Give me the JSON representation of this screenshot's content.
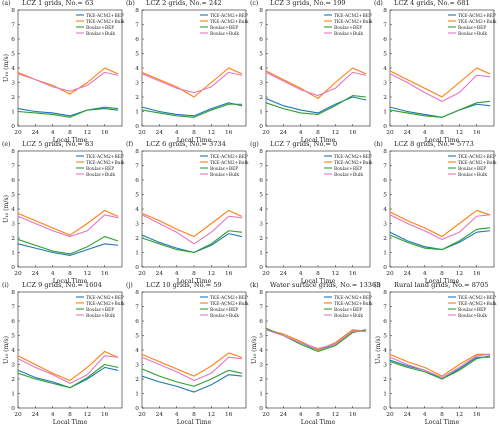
{
  "figure": {
    "x_label": "Local Time",
    "y_label": "U₁₀ (m/s)"
  },
  "chart_data": [
    {
      "type": "line",
      "panel": "(a)",
      "title": "LCZ 1 grids, No.= 63",
      "x": [
        20,
        24,
        4,
        8,
        12,
        16,
        19
      ],
      "ylim": [
        0,
        8
      ],
      "xlabel": "Local Time",
      "ylabel": "U₁₀ (m/s)",
      "legend": [
        "TKE-ACM2+BEP",
        "TKE-ACM2+Bulk",
        "Boulac+BEP",
        "Boulac+Bulk"
      ],
      "series": [
        {
          "name": "TKE-ACM2+BEP",
          "color": "#1f77b4",
          "values": [
            1.2,
            1.0,
            0.9,
            0.7,
            1.1,
            1.2,
            1.1
          ]
        },
        {
          "name": "TKE-ACM2+Bulk",
          "color": "#ff7f0e",
          "values": [
            3.7,
            3.2,
            2.8,
            2.2,
            3.0,
            4.0,
            3.6
          ]
        },
        {
          "name": "Boulac+BEP",
          "color": "#2ca02c",
          "values": [
            1.0,
            0.9,
            0.8,
            0.6,
            1.1,
            1.3,
            1.2
          ]
        },
        {
          "name": "Boulac+Bulk",
          "color": "#e377c2",
          "values": [
            3.6,
            3.2,
            2.7,
            2.4,
            2.8,
            3.7,
            3.5
          ]
        }
      ]
    },
    {
      "type": "line",
      "panel": "(b)",
      "title": "LCZ 2 grids, No.= 242",
      "x": [
        20,
        24,
        4,
        8,
        12,
        16,
        19
      ],
      "ylim": [
        0,
        8
      ],
      "xlabel": "Local Time",
      "ylabel": "U₁₀ (m/s)",
      "legend": [
        "TKE-ACM2+BEP",
        "TKE-ACM2+Bulk",
        "Boulac+BEP",
        "Boulac+Bulk"
      ],
      "series": [
        {
          "name": "TKE-ACM2+BEP",
          "color": "#1f77b4",
          "values": [
            1.3,
            1.0,
            0.8,
            0.7,
            1.2,
            1.6,
            1.4
          ]
        },
        {
          "name": "TKE-ACM2+Bulk",
          "color": "#ff7f0e",
          "values": [
            3.7,
            3.2,
            2.7,
            2.0,
            3.0,
            4.0,
            3.6
          ]
        },
        {
          "name": "Boulac+BEP",
          "color": "#2ca02c",
          "values": [
            1.1,
            0.9,
            0.7,
            0.6,
            1.1,
            1.5,
            1.5
          ]
        },
        {
          "name": "Boulac+Bulk",
          "color": "#e377c2",
          "values": [
            3.6,
            3.1,
            2.6,
            2.3,
            2.7,
            3.7,
            3.5
          ]
        }
      ]
    },
    {
      "type": "line",
      "panel": "(c)",
      "title": "LCZ 3 grids, No.= 199",
      "x": [
        20,
        24,
        4,
        8,
        12,
        16,
        19
      ],
      "ylim": [
        0,
        8
      ],
      "xlabel": "Local Time",
      "ylabel": "U₁₀ (m/s)",
      "legend": [
        "TKE-ACM2+BEP",
        "TKE-ACM2+Bulk",
        "Boulac+BEP",
        "Boulac+Bulk"
      ],
      "series": [
        {
          "name": "TKE-ACM2+BEP",
          "color": "#1f77b4",
          "values": [
            1.9,
            1.4,
            1.1,
            0.9,
            1.5,
            2.0,
            1.8
          ]
        },
        {
          "name": "TKE-ACM2+Bulk",
          "color": "#ff7f0e",
          "values": [
            3.8,
            3.2,
            2.6,
            1.9,
            3.0,
            4.0,
            3.6
          ]
        },
        {
          "name": "Boulac+BEP",
          "color": "#2ca02c",
          "values": [
            1.6,
            1.2,
            0.9,
            0.8,
            1.4,
            2.1,
            2.0
          ]
        },
        {
          "name": "Boulac+Bulk",
          "color": "#e377c2",
          "values": [
            3.7,
            3.1,
            2.5,
            2.1,
            2.6,
            3.7,
            3.5
          ]
        }
      ]
    },
    {
      "type": "line",
      "panel": "(d)",
      "title": "LCZ 4 grids, No.= 681",
      "x": [
        20,
        24,
        4,
        8,
        12,
        16,
        19
      ],
      "ylim": [
        0,
        8
      ],
      "xlabel": "Local Time",
      "ylabel": "U₁₀ (m/s)",
      "legend": [
        "TKE-ACM2+BEP",
        "TKE-ACM2+Bulk",
        "Boulac+BEP",
        "Boulac+Bulk"
      ],
      "series": [
        {
          "name": "TKE-ACM2+BEP",
          "color": "#1f77b4",
          "values": [
            1.3,
            1.0,
            0.8,
            0.6,
            1.1,
            1.5,
            1.4
          ]
        },
        {
          "name": "TKE-ACM2+Bulk",
          "color": "#ff7f0e",
          "values": [
            3.8,
            3.2,
            2.6,
            2.0,
            3.0,
            4.0,
            3.6
          ]
        },
        {
          "name": "Boulac+BEP",
          "color": "#2ca02c",
          "values": [
            1.1,
            0.9,
            0.7,
            0.6,
            1.1,
            1.6,
            1.7
          ]
        },
        {
          "name": "Boulac+Bulk",
          "color": "#e377c2",
          "values": [
            3.6,
            3.0,
            2.3,
            1.7,
            2.3,
            3.5,
            3.4
          ]
        }
      ]
    },
    {
      "type": "line",
      "panel": "(e)",
      "title": "LCZ 5 grids, No.= 83",
      "x": [
        20,
        24,
        4,
        8,
        12,
        16,
        19
      ],
      "ylim": [
        0,
        8
      ],
      "xlabel": "Local Time",
      "ylabel": "U₁₀ (m/s)",
      "legend": [
        "TKE-ACM2+BEP",
        "TKE-ACM2+Bulk",
        "Boulac+BEP",
        "Boulac+Bulk"
      ],
      "series": [
        {
          "name": "TKE-ACM2+BEP",
          "color": "#1f77b4",
          "values": [
            1.6,
            1.3,
            1.0,
            0.8,
            1.2,
            1.6,
            1.5
          ]
        },
        {
          "name": "TKE-ACM2+Bulk",
          "color": "#ff7f0e",
          "values": [
            3.7,
            3.2,
            2.7,
            2.2,
            3.0,
            3.9,
            3.5
          ]
        },
        {
          "name": "Boulac+BEP",
          "color": "#2ca02c",
          "values": [
            1.9,
            1.5,
            1.1,
            0.9,
            1.4,
            2.1,
            1.8
          ]
        },
        {
          "name": "Boulac+Bulk",
          "color": "#e377c2",
          "values": [
            3.5,
            3.0,
            2.5,
            2.1,
            2.5,
            3.6,
            3.4
          ]
        }
      ]
    },
    {
      "type": "line",
      "panel": "(f)",
      "title": "LCZ 6 grids, No.= 3734",
      "x": [
        20,
        24,
        4,
        8,
        12,
        16,
        19
      ],
      "ylim": [
        0,
        8
      ],
      "xlabel": "Local Time",
      "ylabel": "U₁₀ (m/s)",
      "legend": [
        "TKE-ACM2+BEP",
        "TKE-ACM2+Bulk",
        "Boulac+BEP",
        "Boulac+Bulk"
      ],
      "series": [
        {
          "name": "TKE-ACM2+BEP",
          "color": "#1f77b4",
          "values": [
            2.2,
            1.7,
            1.3,
            1.0,
            1.5,
            2.3,
            2.1
          ]
        },
        {
          "name": "TKE-ACM2+Bulk",
          "color": "#ff7f0e",
          "values": [
            3.7,
            3.2,
            2.6,
            2.1,
            3.0,
            3.9,
            3.5
          ]
        },
        {
          "name": "Boulac+BEP",
          "color": "#2ca02c",
          "values": [
            2.0,
            1.6,
            1.2,
            1.0,
            1.6,
            2.5,
            2.4
          ]
        },
        {
          "name": "Boulac+Bulk",
          "color": "#e377c2",
          "values": [
            3.6,
            3.0,
            2.4,
            1.6,
            2.4,
            3.5,
            3.4
          ]
        }
      ]
    },
    {
      "type": "line",
      "panel": "(g)",
      "title": "LCZ 7 grids, No.= 0",
      "x": [
        20,
        24,
        4,
        8,
        12,
        16,
        19
      ],
      "ylim": [
        0,
        8
      ],
      "xlabel": "Local Time",
      "ylabel": "U₁₀ (m/s)",
      "legend": [
        "TKE-ACM2+BEP",
        "TKE-ACM2+Bulk",
        "Boulac+BEP",
        "Boulac+Bulk"
      ],
      "series": []
    },
    {
      "type": "line",
      "panel": "(h)",
      "title": "LCZ 8 grids, No.= 5773",
      "x": [
        20,
        24,
        4,
        8,
        12,
        16,
        19
      ],
      "ylim": [
        0,
        8
      ],
      "xlabel": "Local Time",
      "ylabel": "U₁₀ (m/s)",
      "legend": [
        "TKE-ACM2+BEP",
        "TKE-ACM2+Bulk",
        "Boulac+BEP",
        "Boulac+Bulk"
      ],
      "series": [
        {
          "name": "TKE-ACM2+BEP",
          "color": "#1f77b4",
          "values": [
            2.4,
            1.8,
            1.4,
            1.2,
            1.7,
            2.4,
            2.5
          ]
        },
        {
          "name": "TKE-ACM2+Bulk",
          "color": "#ff7f0e",
          "values": [
            3.8,
            3.2,
            2.7,
            2.1,
            3.0,
            3.9,
            3.6
          ]
        },
        {
          "name": "Boulac+BEP",
          "color": "#2ca02c",
          "values": [
            2.2,
            1.7,
            1.3,
            1.2,
            1.8,
            2.6,
            2.7
          ]
        },
        {
          "name": "Boulac+Bulk",
          "color": "#e377c2",
          "values": [
            3.6,
            3.0,
            2.5,
            1.9,
            2.4,
            3.5,
            3.6
          ]
        }
      ]
    },
    {
      "type": "line",
      "panel": "(i)",
      "title": "LCZ 9 grids, No.= 1604",
      "x": [
        20,
        24,
        4,
        8,
        12,
        16,
        19
      ],
      "ylim": [
        0,
        8
      ],
      "xlabel": "Local Time",
      "ylabel": "U₁₀ (m/s)",
      "legend": [
        "TKE-ACM2+BEP",
        "TKE-ACM2+Bulk",
        "Boulac+BEP",
        "Boulac+Bulk"
      ],
      "series": [
        {
          "name": "TKE-ACM2+BEP",
          "color": "#1f77b4",
          "values": [
            2.6,
            2.1,
            1.8,
            1.4,
            2.0,
            2.8,
            2.6
          ]
        },
        {
          "name": "TKE-ACM2+Bulk",
          "color": "#ff7f0e",
          "values": [
            3.6,
            3.0,
            2.4,
            1.9,
            2.8,
            3.9,
            3.5
          ]
        },
        {
          "name": "Boulac+BEP",
          "color": "#2ca02c",
          "values": [
            2.4,
            2.0,
            1.7,
            1.4,
            2.1,
            3.0,
            2.8
          ]
        },
        {
          "name": "Boulac+Bulk",
          "color": "#e377c2",
          "values": [
            3.4,
            2.8,
            2.3,
            1.7,
            2.3,
            3.6,
            3.5
          ]
        }
      ]
    },
    {
      "type": "line",
      "panel": "(j)",
      "title": "LCZ 10 grids, No.= 59",
      "x": [
        20,
        24,
        4,
        8,
        12,
        16,
        19
      ],
      "ylim": [
        0,
        8
      ],
      "xlabel": "Local Time",
      "ylabel": "U₁₀ (m/s)",
      "legend": [
        "TKE-ACM2+BEP",
        "TKE-ACM2+Bulk",
        "Boulac+BEP",
        "Boulac+Bulk"
      ],
      "series": [
        {
          "name": "TKE-ACM2+BEP",
          "color": "#1f77b4",
          "values": [
            2.2,
            1.8,
            1.5,
            1.1,
            1.6,
            2.3,
            2.2
          ]
        },
        {
          "name": "TKE-ACM2+Bulk",
          "color": "#ff7f0e",
          "values": [
            3.7,
            3.2,
            2.7,
            2.2,
            2.9,
            3.8,
            3.5
          ]
        },
        {
          "name": "Boulac+BEP",
          "color": "#2ca02c",
          "values": [
            2.7,
            2.2,
            1.8,
            1.5,
            2.0,
            2.6,
            2.4
          ]
        },
        {
          "name": "Boulac+Bulk",
          "color": "#e377c2",
          "values": [
            3.5,
            3.0,
            2.5,
            1.9,
            2.4,
            3.5,
            3.4
          ]
        }
      ]
    },
    {
      "type": "line",
      "panel": "(k)",
      "title": "Water surface grids, No.= 13363",
      "x": [
        20,
        24,
        4,
        8,
        12,
        16,
        19
      ],
      "ylim": [
        0,
        8
      ],
      "xlabel": "Local Time",
      "ylabel": "U₁₀ (m/s)",
      "legend": [
        "TKE-ACM2+BEP",
        "TKE-ACM2+Bulk",
        "Boulac+BEP",
        "Boulac+Bulk"
      ],
      "series": [
        {
          "name": "TKE-ACM2+BEP",
          "color": "#1f77b4",
          "values": [
            5.4,
            5.0,
            4.5,
            4.0,
            4.4,
            5.3,
            5.3
          ]
        },
        {
          "name": "TKE-ACM2+Bulk",
          "color": "#ff7f0e",
          "values": [
            5.4,
            5.1,
            4.6,
            4.0,
            4.5,
            5.4,
            5.3
          ]
        },
        {
          "name": "Boulac+BEP",
          "color": "#2ca02c",
          "values": [
            5.5,
            5.0,
            4.4,
            3.9,
            4.3,
            5.2,
            5.4
          ]
        },
        {
          "name": "Boulac+Bulk",
          "color": "#e377c2",
          "values": [
            5.4,
            5.0,
            4.5,
            4.1,
            4.4,
            5.3,
            5.3
          ]
        }
      ]
    },
    {
      "type": "line",
      "panel": "(l)",
      "title": "Rural land grids, No.= 8705",
      "x": [
        20,
        24,
        4,
        8,
        12,
        16,
        19
      ],
      "ylim": [
        0,
        8
      ],
      "xlabel": "Local Time",
      "ylabel": "U₁₀ (m/s)",
      "legend": [
        "TKE-ACM2+BEP",
        "TKE-ACM2+Bulk",
        "Boulac+BEP",
        "Boulac+Bulk"
      ],
      "series": [
        {
          "name": "TKE-ACM2+BEP",
          "color": "#1f77b4",
          "values": [
            3.3,
            2.9,
            2.6,
            2.0,
            2.7,
            3.5,
            3.5
          ]
        },
        {
          "name": "TKE-ACM2+Bulk",
          "color": "#ff7f0e",
          "values": [
            3.7,
            3.2,
            2.8,
            2.2,
            3.0,
            3.7,
            3.7
          ]
        },
        {
          "name": "Boulac+BEP",
          "color": "#2ca02c",
          "values": [
            3.2,
            2.8,
            2.5,
            2.0,
            2.6,
            3.4,
            3.6
          ]
        },
        {
          "name": "Boulac+Bulk",
          "color": "#e377c2",
          "values": [
            3.5,
            3.0,
            2.6,
            2.1,
            2.8,
            3.6,
            3.7
          ]
        }
      ]
    }
  ]
}
